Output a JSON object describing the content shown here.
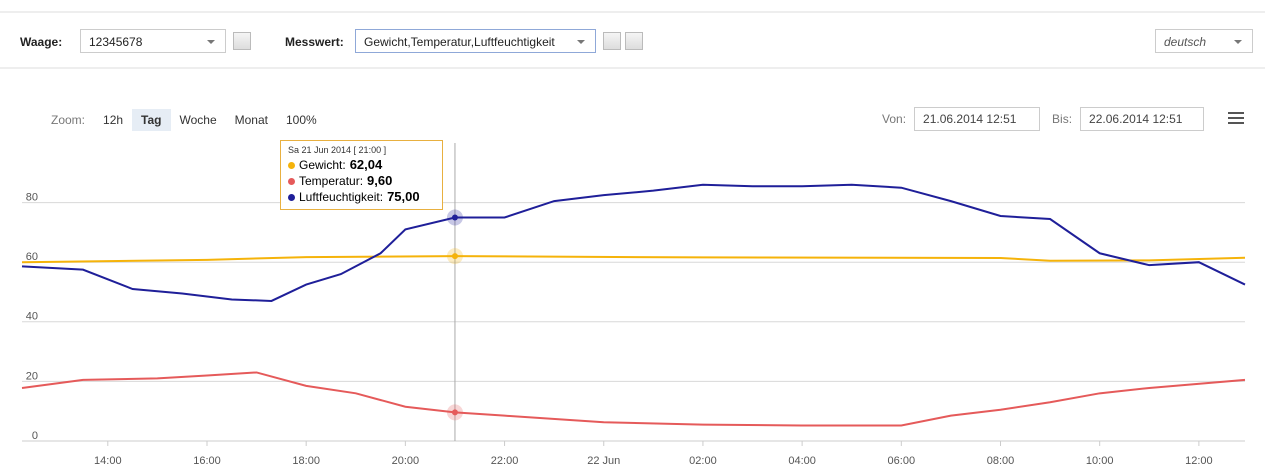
{
  "toolbar": {
    "waage_label": "Waage:",
    "waage_value": "12345678",
    "messwert_label": "Messwert:",
    "messwert_value": "Gewicht,Temperatur,Luftfeuchtigkeit",
    "language": "deutsch"
  },
  "zoom": {
    "label": "Zoom:",
    "buttons": [
      "12h",
      "Tag",
      "Woche",
      "Monat",
      "100%"
    ],
    "selected": 1
  },
  "range": {
    "von_label": "Von:",
    "von": "21.06.2014 12:51",
    "bis_label": "Bis:",
    "bis": "22.06.2014 12:51"
  },
  "tooltip": {
    "header": "Sa 21 Jun 2014 [ 21:00 ]",
    "rows": [
      {
        "label": "Gewicht:",
        "value": "62,04",
        "color": "#f5b30a"
      },
      {
        "label": "Temperatur:",
        "value": "9,60",
        "color": "#e55a5a"
      },
      {
        "label": "Luftfeuchtigkeit:",
        "value": "75,00",
        "color": "#1f1f99"
      }
    ]
  },
  "chart_data": {
    "type": "line",
    "xlim": [
      12.27,
      36.93
    ],
    "ylim": [
      0,
      100
    ],
    "grid": true,
    "yticks": [
      0,
      20,
      40,
      60,
      80
    ],
    "xticks": [
      {
        "value": 14,
        "label": "14:00"
      },
      {
        "value": 16,
        "label": "16:00"
      },
      {
        "value": 18,
        "label": "18:00"
      },
      {
        "value": 20,
        "label": "20:00"
      },
      {
        "value": 22,
        "label": "22:00"
      },
      {
        "value": 24,
        "label": "22 Jun"
      },
      {
        "value": 26,
        "label": "02:00"
      },
      {
        "value": 28,
        "label": "04:00"
      },
      {
        "value": 30,
        "label": "06:00"
      },
      {
        "value": 32,
        "label": "08:00"
      },
      {
        "value": 34,
        "label": "10:00"
      },
      {
        "value": 36,
        "label": "12:00"
      }
    ],
    "highlight_x": 21,
    "series": [
      {
        "name": "Gewicht",
        "color": "#f5b30a",
        "x": [
          12.27,
          16,
          18,
          21,
          26,
          32,
          33,
          35,
          36.93
        ],
        "values": [
          60,
          60.8,
          61.7,
          62.04,
          61.6,
          61.4,
          60.5,
          60.6,
          61.5
        ]
      },
      {
        "name": "Temperatur",
        "color": "#e55a5a",
        "x": [
          12.27,
          13.5,
          15,
          16,
          17,
          18,
          19,
          20,
          21,
          22,
          24,
          26,
          28,
          30,
          31,
          32,
          33,
          34,
          35,
          36.93
        ],
        "values": [
          17.8,
          20.5,
          21,
          22,
          23,
          18.5,
          16,
          11.5,
          9.6,
          8.5,
          6.3,
          5.5,
          5.2,
          5.2,
          8.5,
          10.5,
          13,
          16,
          17.8,
          20.5
        ]
      },
      {
        "name": "Luftfeuchtigkeit",
        "color": "#1f1f99",
        "x": [
          12.27,
          13.5,
          14.5,
          15.5,
          16.5,
          17.3,
          18,
          18.7,
          19.5,
          20,
          21,
          22,
          23,
          24,
          25,
          26,
          27,
          28,
          29,
          30,
          31,
          32,
          33,
          34,
          35,
          36,
          36.93
        ],
        "values": [
          58.6,
          57.5,
          51,
          49.5,
          47.5,
          47,
          52.5,
          56,
          63,
          71,
          75,
          75,
          80.5,
          82.5,
          84,
          86,
          85.5,
          85.5,
          86,
          85,
          80.5,
          75.5,
          74.5,
          63,
          59,
          60,
          52.5
        ]
      }
    ]
  }
}
